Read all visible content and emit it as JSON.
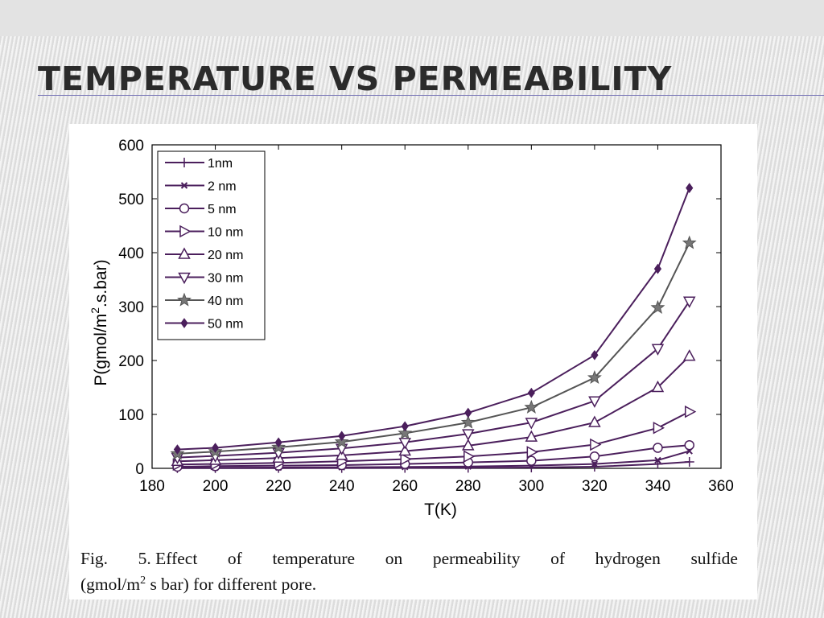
{
  "slide": {
    "title": "TEMPERATURE VS PERMEABILITY",
    "caption": {
      "words": [
        "Fig.",
        "5. Effect",
        "of",
        "temperature",
        "on",
        "permeability",
        "of",
        "hydrogen",
        "sulfide"
      ],
      "line2_before": "(gmol/m",
      "line2_sup": "2",
      "line2_after": " s bar) for different pore."
    }
  },
  "chart_data": {
    "type": "line",
    "xlabel": "T(K)",
    "ylabel_main": "P(gmol/m",
    "ylabel_sup": "2",
    "ylabel_tail": ".s.bar)",
    "xlim": [
      180,
      360
    ],
    "ylim": [
      0,
      600
    ],
    "xticks": [
      180,
      200,
      220,
      240,
      260,
      280,
      300,
      320,
      340,
      360
    ],
    "yticks": [
      0,
      100,
      200,
      300,
      400,
      500,
      600
    ],
    "grid": false,
    "legend_position": "top-left",
    "line_color": "#4b1f5c",
    "x": [
      188,
      200,
      220,
      240,
      260,
      280,
      300,
      320,
      340,
      350
    ],
    "series": [
      {
        "name": "1nm",
        "marker": "plus",
        "values": [
          0.3,
          0.4,
          0.5,
          0.6,
          0.8,
          1,
          1.5,
          3,
          8,
          12
        ]
      },
      {
        "name": "2 nm",
        "marker": "x",
        "values": [
          1,
          1.2,
          1.5,
          2,
          2.5,
          3.5,
          5,
          8,
          15,
          32
        ]
      },
      {
        "name": "5 nm",
        "marker": "circle",
        "values": [
          3,
          4,
          5,
          6,
          8,
          11,
          14,
          22,
          38,
          43
        ]
      },
      {
        "name": "10 nm",
        "marker": "tri-right",
        "values": [
          7,
          8,
          10,
          13,
          17,
          22,
          30,
          44,
          75,
          105
        ]
      },
      {
        "name": "20 nm",
        "marker": "tri-up",
        "values": [
          13,
          15,
          19,
          24,
          32,
          42,
          58,
          85,
          150,
          208
        ]
      },
      {
        "name": "30 nm",
        "marker": "tri-down",
        "values": [
          20,
          23,
          29,
          37,
          48,
          64,
          85,
          125,
          222,
          310
        ]
      },
      {
        "name": "40 nm",
        "marker": "star",
        "values": [
          27,
          31,
          39,
          49,
          65,
          85,
          113,
          168,
          298,
          418
        ]
      },
      {
        "name": "50 nm",
        "marker": "diamond",
        "values": [
          35,
          38,
          48,
          60,
          78,
          103,
          140,
          210,
          370,
          520
        ]
      }
    ]
  }
}
